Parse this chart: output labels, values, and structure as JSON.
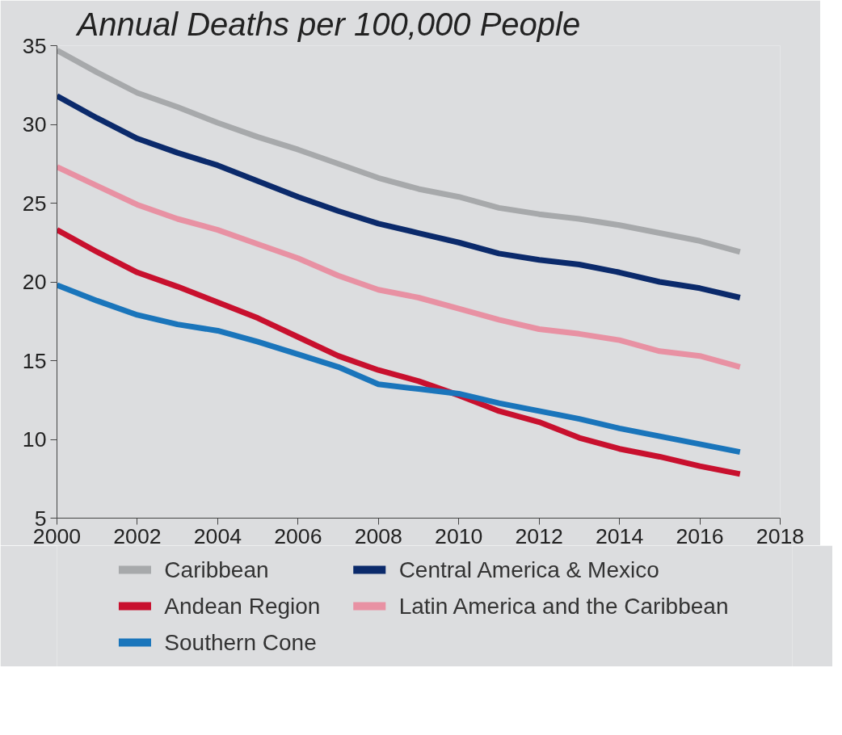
{
  "chart_data": {
    "type": "line",
    "title": "Annual Deaths per 100,000 People",
    "x": [
      2000,
      2001,
      2002,
      2003,
      2004,
      2005,
      2006,
      2007,
      2008,
      2009,
      2010,
      2011,
      2012,
      2013,
      2014,
      2015,
      2016,
      2017
    ],
    "series": [
      {
        "name": "Caribbean",
        "color": "#a7a9ab",
        "values": [
          34.7,
          33.3,
          32.0,
          31.1,
          30.1,
          29.2,
          28.4,
          27.5,
          26.6,
          25.9,
          25.4,
          24.7,
          24.3,
          24.0,
          23.6,
          23.1,
          22.6,
          21.9
        ]
      },
      {
        "name": "Central America & Mexico",
        "color": "#0b2a6b",
        "values": [
          31.8,
          30.4,
          29.1,
          28.2,
          27.4,
          26.4,
          25.4,
          24.5,
          23.7,
          23.1,
          22.5,
          21.8,
          21.4,
          21.1,
          20.6,
          20.0,
          19.6,
          19.0
        ]
      },
      {
        "name": "Andean Region",
        "color": "#c8102e",
        "values": [
          23.3,
          21.9,
          20.6,
          19.7,
          18.7,
          17.7,
          16.5,
          15.3,
          14.4,
          13.7,
          12.8,
          11.8,
          11.1,
          10.1,
          9.4,
          8.9,
          8.3,
          7.8
        ]
      },
      {
        "name": "Latin America and the Caribbean",
        "color": "#e891a3",
        "values": [
          27.3,
          26.1,
          24.9,
          24.0,
          23.3,
          22.4,
          21.5,
          20.4,
          19.5,
          19.0,
          18.3,
          17.6,
          17.0,
          16.7,
          16.3,
          15.6,
          15.3,
          14.6
        ]
      },
      {
        "name": "Southern Cone",
        "color": "#1a75bb",
        "values": [
          19.8,
          18.8,
          17.9,
          17.3,
          16.9,
          16.2,
          15.4,
          14.6,
          13.5,
          13.2,
          12.9,
          12.3,
          11.8,
          11.3,
          10.7,
          10.2,
          9.7,
          9.2
        ]
      }
    ],
    "xlim": [
      2000,
      2018
    ],
    "xticks": [
      2000,
      2002,
      2004,
      2006,
      2008,
      2010,
      2012,
      2014,
      2016,
      2018
    ],
    "ylim": [
      5,
      35
    ],
    "yticks": [
      5,
      10,
      15,
      20,
      25,
      30,
      35
    ],
    "grid": false,
    "legend": "bottom",
    "marker": "none",
    "line_style": "solid"
  }
}
